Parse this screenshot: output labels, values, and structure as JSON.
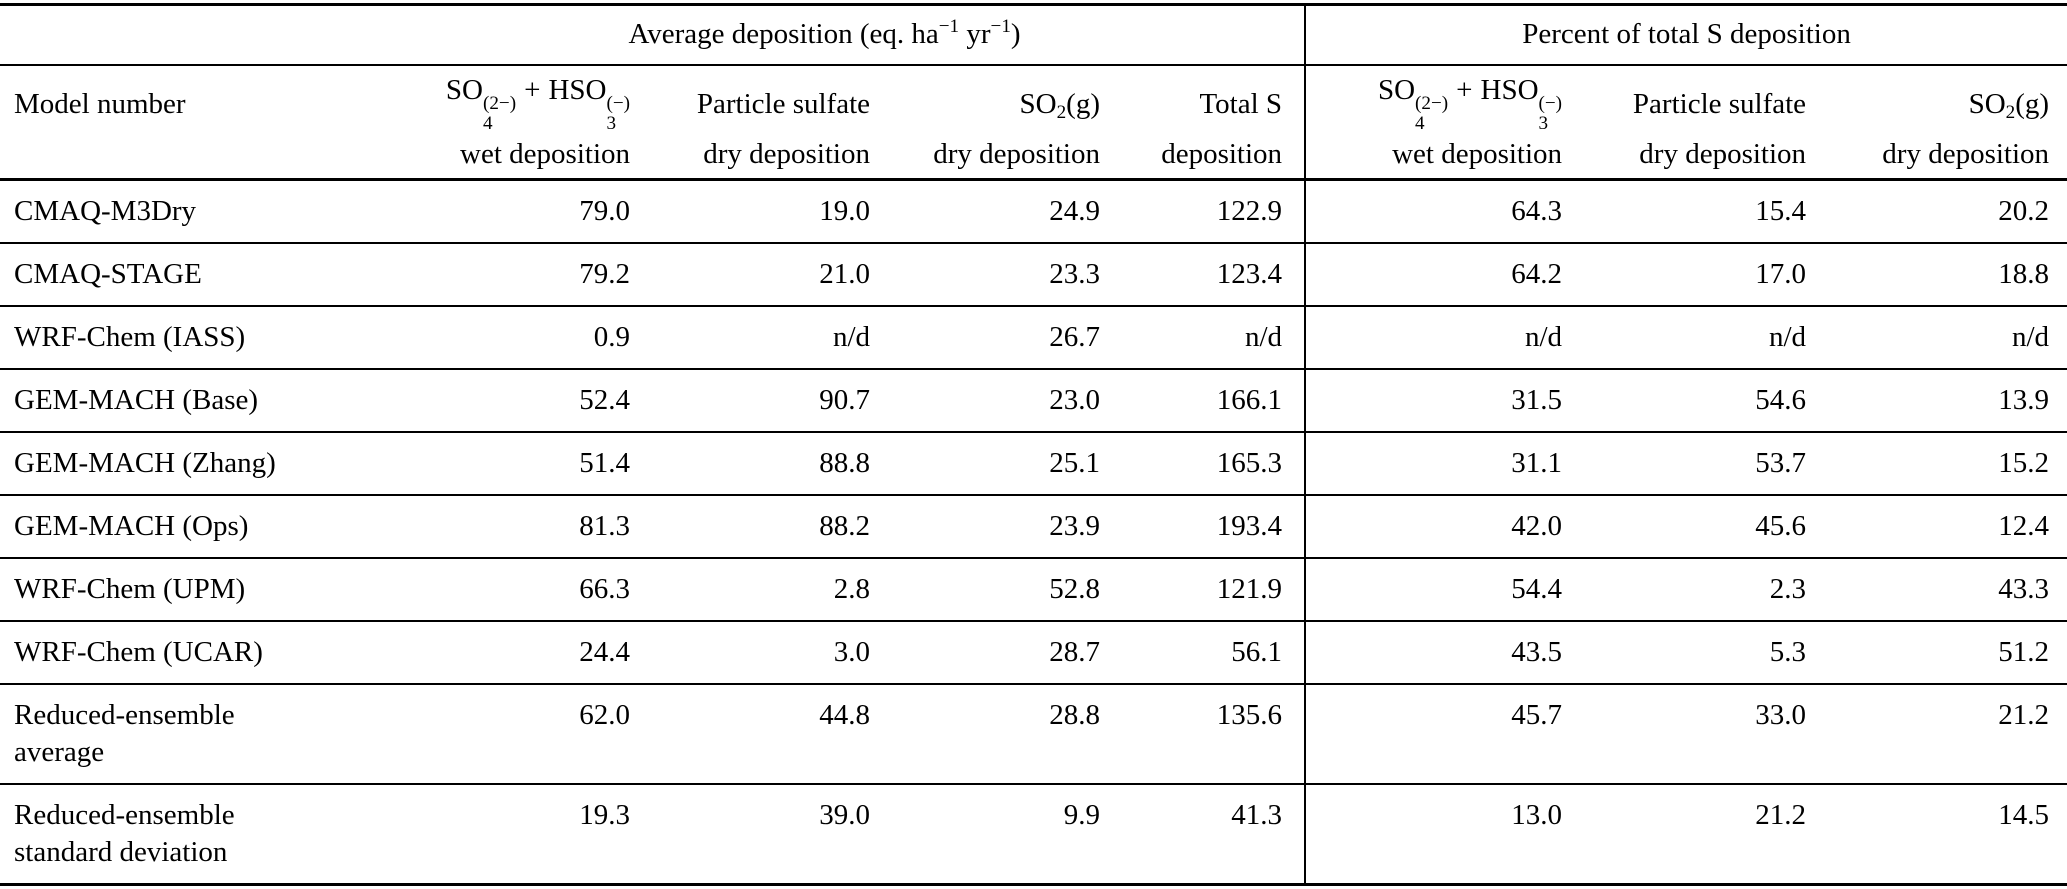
{
  "table": {
    "group_headers": {
      "avg": {
        "t1": "Average deposition (eq. ha",
        "s1": "−1",
        "t2": " yr",
        "s2": "−1",
        "t3": ")"
      },
      "pct": "Percent of total S deposition"
    },
    "col_headers": {
      "model": "Model number",
      "formula": {
        "base1": "SO",
        "sub1": "4",
        "sup1": "(2−)",
        "plus": "+",
        "base2": "HSO",
        "sub2": "3",
        "sup2": "(−)"
      },
      "wet_dep": "wet deposition",
      "particle": "Particle sulfate",
      "dry_dep": "dry deposition",
      "so2": {
        "base": "SO",
        "sub": "2",
        "rest": "(g)"
      },
      "total_s": "Total S",
      "deposition": "deposition"
    },
    "rows": [
      {
        "model": [
          "CMAQ-M3Dry"
        ],
        "values": [
          "79.0",
          "19.0",
          "24.9",
          "122.9",
          "64.3",
          "15.4",
          "20.2"
        ]
      },
      {
        "model": [
          "CMAQ-STAGE"
        ],
        "values": [
          "79.2",
          "21.0",
          "23.3",
          "123.4",
          "64.2",
          "17.0",
          "18.8"
        ]
      },
      {
        "model": [
          "WRF-Chem (IASS)"
        ],
        "values": [
          "0.9",
          "n/d",
          "26.7",
          "n/d",
          "n/d",
          "n/d",
          "n/d"
        ]
      },
      {
        "model": [
          "GEM-MACH (Base)"
        ],
        "values": [
          "52.4",
          "90.7",
          "23.0",
          "166.1",
          "31.5",
          "54.6",
          "13.9"
        ]
      },
      {
        "model": [
          "GEM-MACH (Zhang)"
        ],
        "values": [
          "51.4",
          "88.8",
          "25.1",
          "165.3",
          "31.1",
          "53.7",
          "15.2"
        ]
      },
      {
        "model": [
          "GEM-MACH (Ops)"
        ],
        "values": [
          "81.3",
          "88.2",
          "23.9",
          "193.4",
          "42.0",
          "45.6",
          "12.4"
        ]
      },
      {
        "model": [
          "WRF-Chem (UPM)"
        ],
        "values": [
          "66.3",
          "2.8",
          "52.8",
          "121.9",
          "54.4",
          "2.3",
          "43.3"
        ]
      },
      {
        "model": [
          "WRF-Chem (UCAR)"
        ],
        "values": [
          "24.4",
          "3.0",
          "28.7",
          "56.1",
          "43.5",
          "5.3",
          "51.2"
        ]
      },
      {
        "model": [
          "Reduced-ensemble",
          "average"
        ],
        "values": [
          "62.0",
          "44.8",
          "28.8",
          "135.6",
          "45.7",
          "33.0",
          "21.2"
        ]
      },
      {
        "model": [
          "Reduced-ensemble",
          "standard deviation"
        ],
        "values": [
          "19.3",
          "39.0",
          "9.9",
          "41.3",
          "13.0",
          "21.2",
          "14.5"
        ]
      }
    ]
  }
}
